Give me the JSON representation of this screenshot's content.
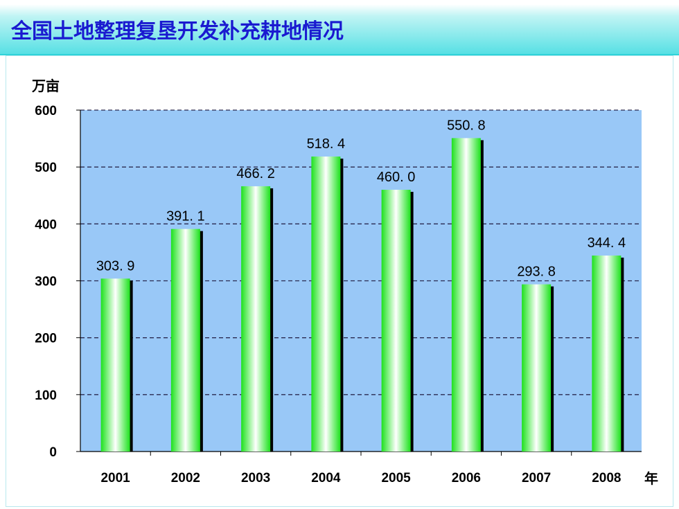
{
  "title": "全国土地整理复垦开发补充耕地情况",
  "colors": {
    "title_text": "#1a1ad0",
    "title_bar": "#57e0e4",
    "plot_background": "#99c8f7",
    "bar_light": "#ffffff",
    "bar_green": "#1ee01e",
    "bar_shadow": "#000000",
    "gridline": "#2a2a50"
  },
  "chart_data": {
    "type": "bar",
    "title": "全国土地整理复垦开发补充耕地情况",
    "ylabel": "万亩",
    "xlabel": "年",
    "categories": [
      "2001",
      "2002",
      "2003",
      "2004",
      "2005",
      "2006",
      "2007",
      "2008"
    ],
    "values": [
      303.9,
      391.1,
      466.2,
      518.4,
      460.0,
      550.8,
      293.8,
      344.4
    ],
    "value_labels": [
      "303. 9",
      "391. 1",
      "466. 2",
      "518. 4",
      "460. 0",
      "550. 8",
      "293. 8",
      "344. 4"
    ],
    "ylim": [
      0,
      600
    ],
    "yticks": [
      "0",
      "100",
      "200",
      "300",
      "400",
      "500",
      "600"
    ],
    "grid": "dashed horizontal",
    "legend": "none"
  }
}
